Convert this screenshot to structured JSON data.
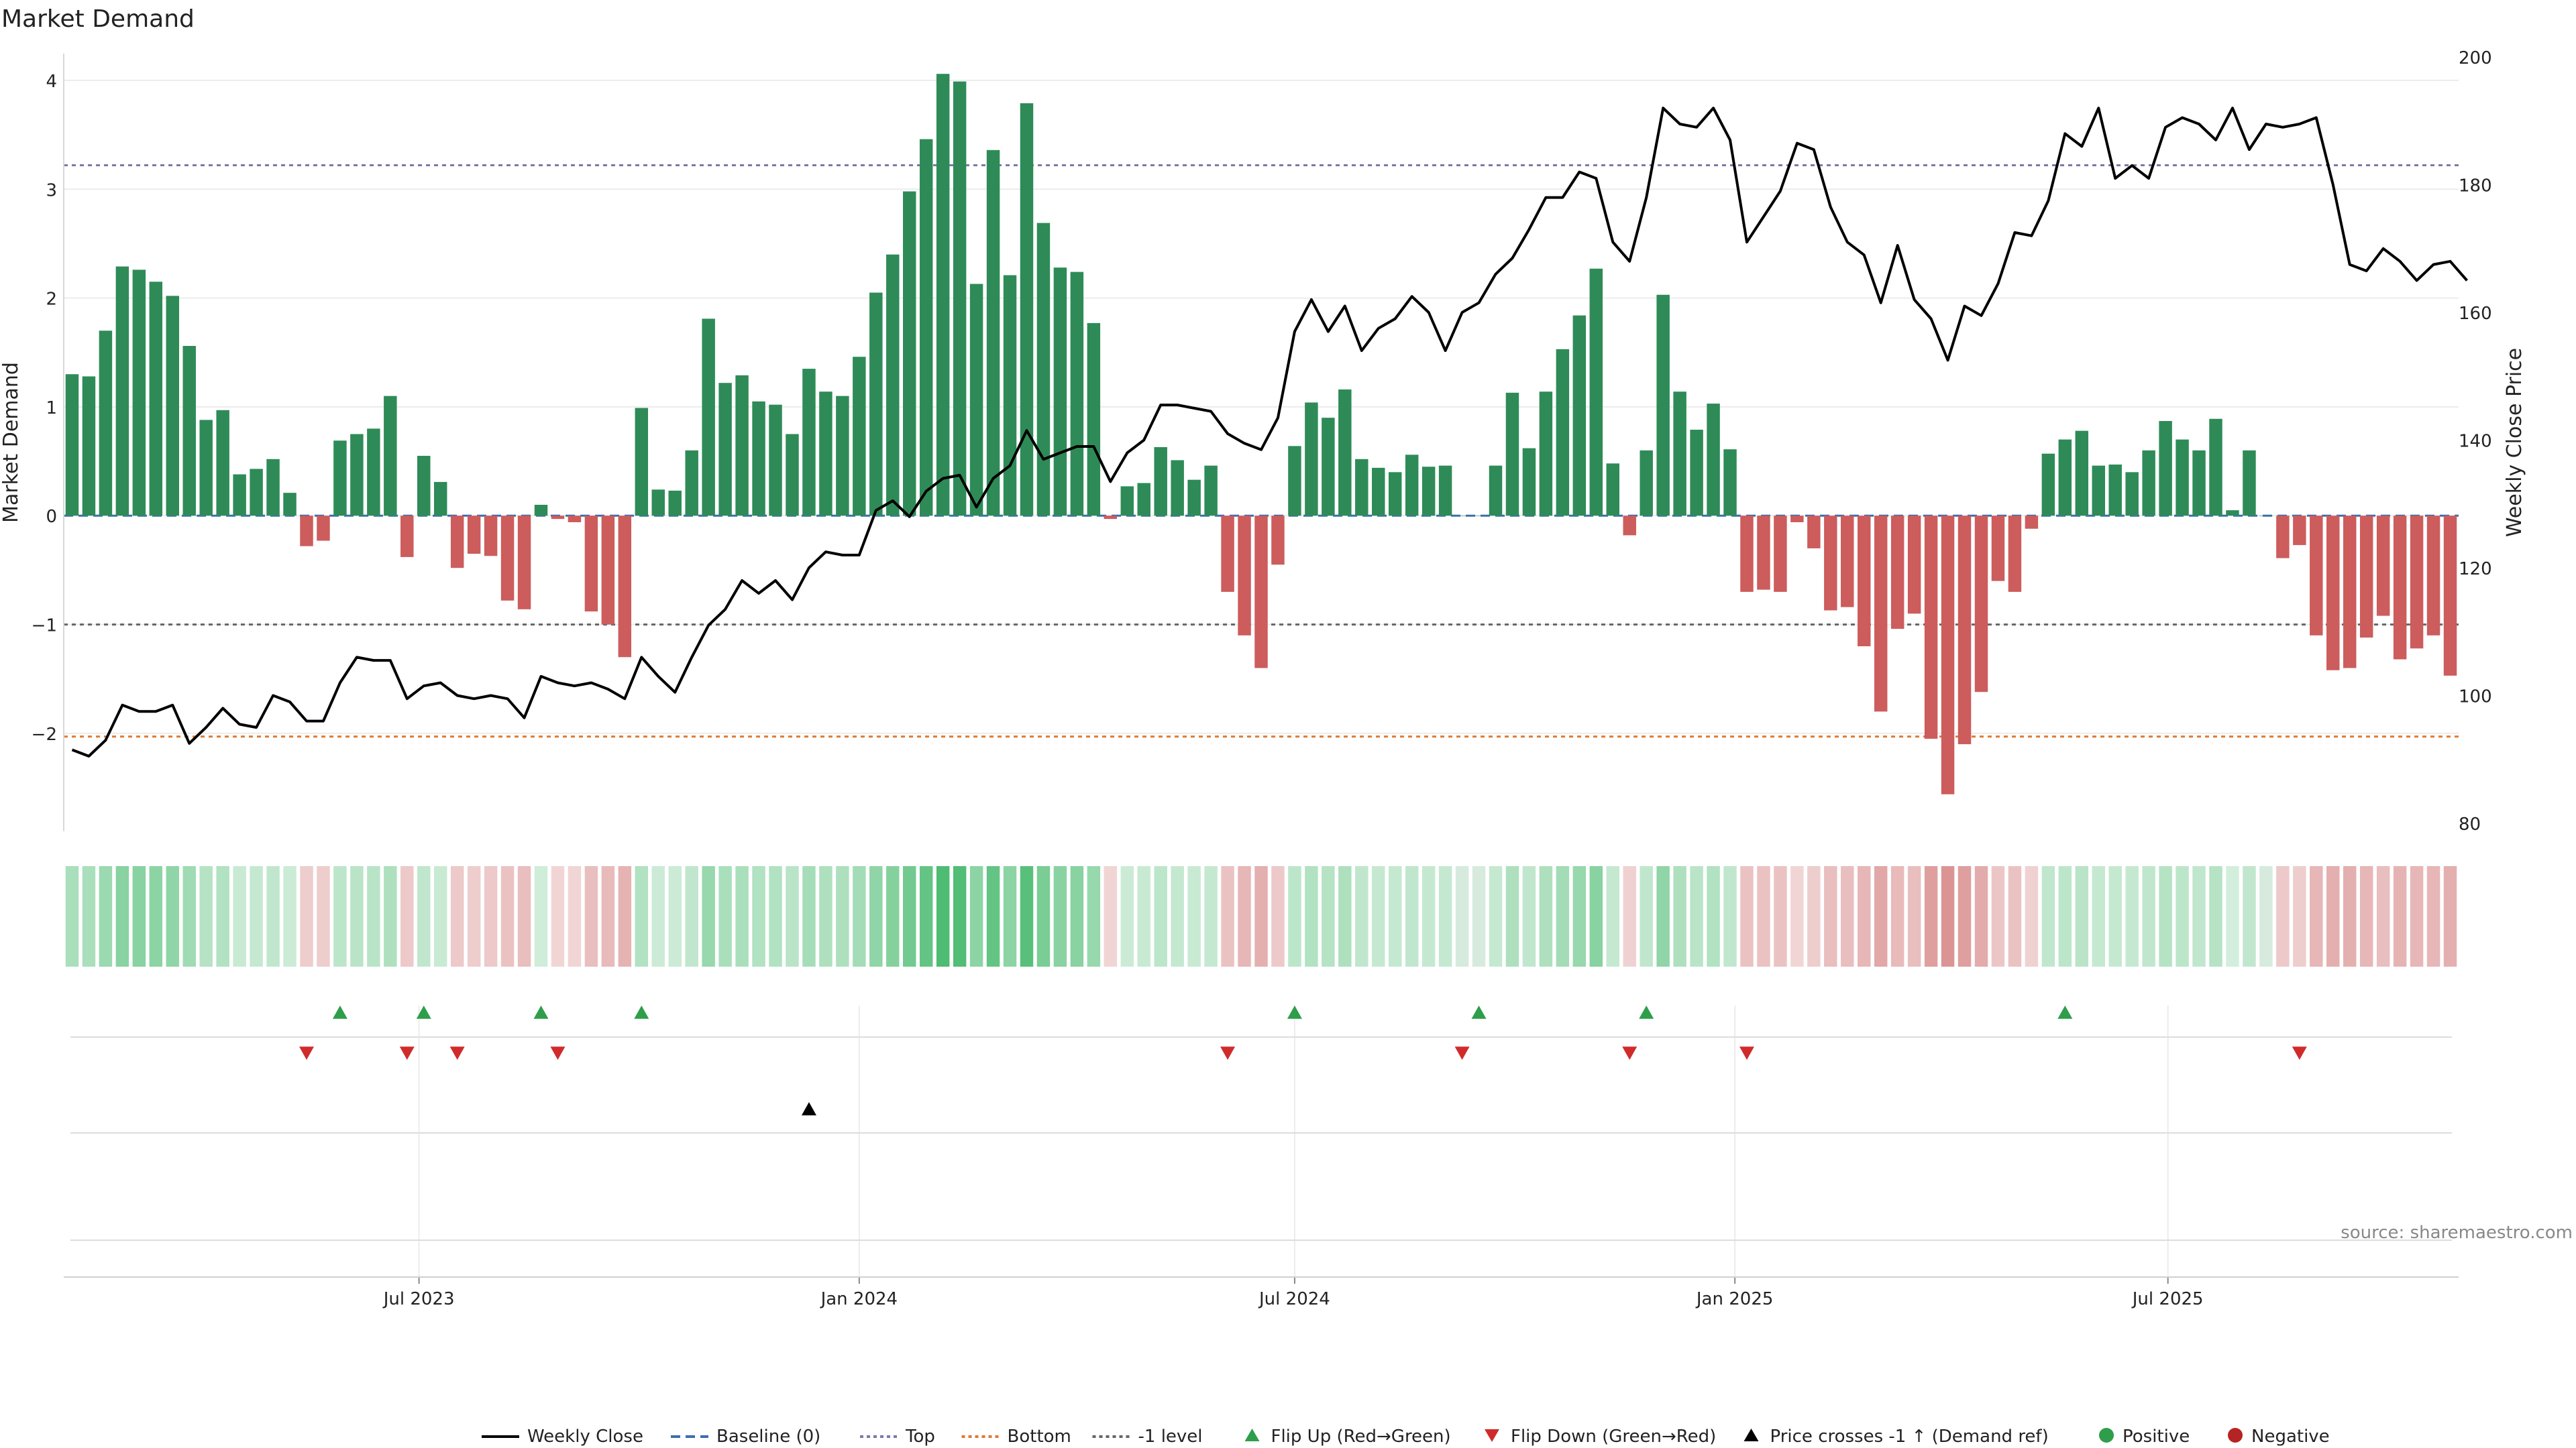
{
  "chart_data": {
    "type": "bar",
    "title": "Market Demand",
    "ylabel_left": "Market Demand",
    "ylabel_right": "Weekly Close Price",
    "source": "source: sharemaestro.com",
    "x_start": "2023-02-06",
    "x_step_days": 7,
    "x_ticks": [
      "Jul 2023",
      "Jan 2024",
      "Jul 2024",
      "Jan 2025",
      "Jul 2025"
    ],
    "left_axis": {
      "ticks": [
        4,
        3,
        2,
        1,
        0,
        -1,
        -2
      ],
      "tick_labels": [
        "4",
        "3",
        "2",
        "1",
        "0",
        "−1",
        "−2"
      ],
      "ylim": [
        -2.9,
        4.4
      ]
    },
    "right_axis": {
      "ticks": [
        200,
        180,
        160,
        140,
        120,
        100,
        80
      ],
      "tick_labels": [
        "200",
        "180",
        "160",
        "140",
        "120",
        "100",
        "80"
      ],
      "ylim": [
        80,
        200
      ]
    },
    "reference_lines": {
      "baseline": 0,
      "top": 3.22,
      "bottom": -2.03,
      "minus_one": -1
    },
    "demand": [
      1.3,
      1.28,
      1.7,
      2.29,
      2.26,
      2.15,
      2.02,
      1.56,
      0.88,
      0.97,
      0.38,
      0.43,
      0.52,
      0.21,
      -0.28,
      -0.23,
      0.69,
      0.75,
      0.8,
      1.1,
      -0.38,
      0.55,
      0.31,
      -0.48,
      -0.35,
      -0.37,
      -0.78,
      -0.86,
      0.1,
      -0.03,
      -0.06,
      -0.88,
      -1.0,
      -1.3,
      0.99,
      0.24,
      0.23,
      0.6,
      1.81,
      1.22,
      1.29,
      1.05,
      1.02,
      0.75,
      1.35,
      1.14,
      1.1,
      1.46,
      2.05,
      2.4,
      2.98,
      3.46,
      4.06,
      3.99,
      2.13,
      3.36,
      2.21,
      3.79,
      2.69,
      2.28,
      2.24,
      1.77,
      -0.03,
      0.27,
      0.3,
      0.63,
      0.51,
      0.33,
      0.46,
      -0.7,
      -1.1,
      -1.4,
      -0.45,
      0.64,
      1.04,
      0.9,
      1.16,
      0.52,
      0.44,
      0.4,
      0.56,
      0.45,
      0.46,
      0,
      0,
      0.46,
      1.13,
      0.62,
      1.14,
      1.53,
      1.84,
      2.27,
      0.48,
      -0.18,
      0.6,
      2.03,
      1.14,
      0.79,
      1.03,
      0.61,
      -0.7,
      -0.68,
      -0.7,
      -0.06,
      -0.3,
      -0.87,
      -0.84,
      -1.2,
      -1.8,
      -1.04,
      -0.9,
      -2.05,
      -2.56,
      -2.1,
      -1.62,
      -0.6,
      -0.7,
      -0.12,
      0.57,
      0.7,
      0.78,
      0.46,
      0.47,
      0.4,
      0.6,
      0.87,
      0.7,
      0.6,
      0.89,
      0.05,
      0.6,
      0,
      -0.39,
      -0.27,
      -1.1,
      -1.42,
      -1.4,
      -1.12,
      -0.92,
      -1.32,
      -1.22,
      -1.1,
      -1.47
    ],
    "weekly_close": [
      91.5,
      90.5,
      93,
      98.5,
      97.5,
      97.5,
      98.5,
      92.5,
      95,
      98,
      95.5,
      95,
      100,
      99,
      96,
      96,
      102,
      106,
      105.5,
      105.5,
      99.5,
      101.5,
      102,
      100,
      99.5,
      100,
      99.5,
      96.5,
      103,
      102,
      101.5,
      102,
      101,
      99.5,
      106,
      103,
      100.5,
      106,
      111,
      113.5,
      118,
      116,
      118,
      115,
      120,
      122.5,
      122,
      122,
      129,
      130.5,
      128,
      132,
      134,
      134.5,
      129.5,
      134,
      136,
      141.5,
      137,
      138,
      139,
      139,
      133.5,
      138,
      140,
      145.5,
      145.5,
      145,
      144.5,
      141,
      139.5,
      138.5,
      143.5,
      157,
      162,
      157,
      161,
      154,
      157.5,
      159,
      162.5,
      160,
      154,
      160,
      161.5,
      166,
      168.5,
      173,
      178,
      178,
      182,
      181,
      171,
      168,
      178,
      192,
      189.5,
      189,
      192,
      187,
      171,
      175,
      179,
      186.5,
      185.5,
      176.5,
      171,
      169,
      161.5,
      170.5,
      162,
      159,
      152.5,
      161,
      159.5,
      164.5,
      172.5,
      172,
      177.5,
      188,
      186,
      192,
      181,
      183,
      181,
      189,
      190.5,
      189.5,
      187,
      192,
      185.5,
      189.5,
      189,
      189.5,
      190.5,
      180,
      167.5,
      166.5,
      170,
      168,
      165,
      167.5,
      168,
      165
    ],
    "flip_up_weeks": [
      16,
      21,
      28,
      34,
      73,
      84,
      94,
      119
    ],
    "flip_down_weeks": [
      14,
      20,
      23,
      29,
      69,
      83,
      93,
      100,
      133
    ],
    "price_cross_weeks": [
      44
    ],
    "legend": [
      {
        "label": "Weekly Close",
        "marker": "line",
        "color": "#000000"
      },
      {
        "label": "Baseline (0)",
        "marker": "dash",
        "color": "#3a6fb0"
      },
      {
        "label": "Top",
        "marker": "dot",
        "color": "#7a7aa8"
      },
      {
        "label": "Bottom",
        "marker": "dot",
        "color": "#e07a2f"
      },
      {
        "label": "-1 level",
        "marker": "dot",
        "color": "#666666"
      },
      {
        "label": "Flip Up (Red→Green)",
        "marker": "tri-up",
        "color": "#2e9e4a"
      },
      {
        "label": "Flip Down (Green→Red)",
        "marker": "tri-down",
        "color": "#d02b2b"
      },
      {
        "label": "Price crosses -1 ↑ (Demand ref)",
        "marker": "tri-up",
        "color": "#000000"
      },
      {
        "label": "Positive",
        "marker": "circle",
        "color": "#2e9e4a"
      },
      {
        "label": "Negative",
        "marker": "circle",
        "color": "#b52424"
      }
    ],
    "colors": {
      "positive_bar": "#2e8b57",
      "negative_bar": "#cd5c5c",
      "price_line": "#000000",
      "baseline": "#3a6fb0",
      "top_line": "#7a7aa8",
      "bottom_line": "#e07a2f",
      "minus_one_line": "#666666",
      "flip_up": "#2e9e4a",
      "flip_down": "#d02b2b",
      "grid": "#ececec"
    }
  }
}
